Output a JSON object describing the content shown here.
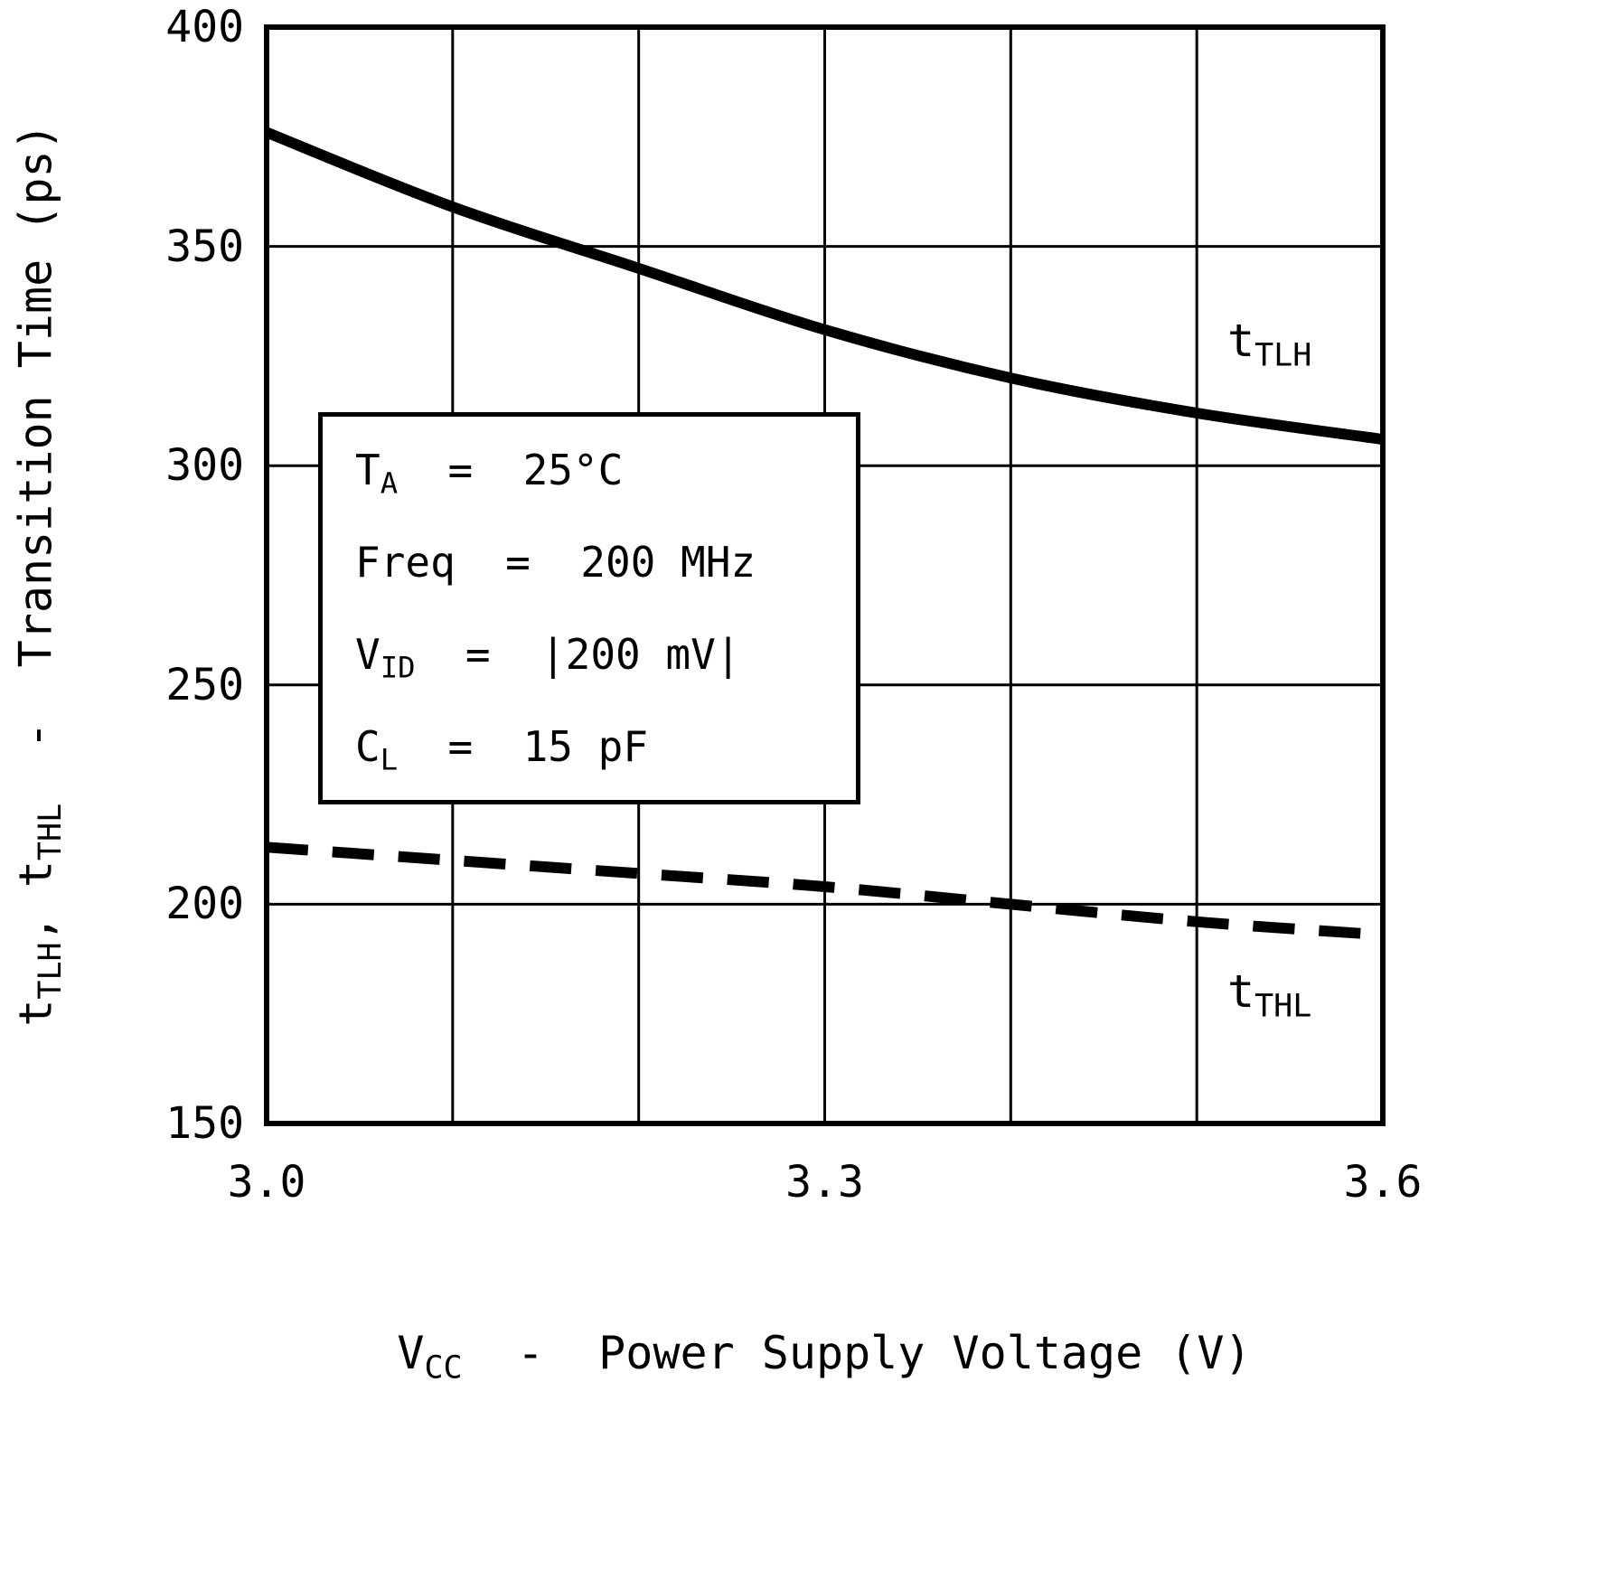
{
  "chart_data": {
    "type": "line",
    "title": "",
    "xlabel": {
      "prefix": "V",
      "sub": "CC",
      "suffix": "  -  Power Supply Voltage (V)"
    },
    "ylabel": {
      "p1": "t",
      "s1": "TLH",
      "p2": ", t",
      "s2": "THL",
      "p3": "  -  Transition Time (ps)"
    },
    "xlim": [
      3.0,
      3.6
    ],
    "ylim": [
      150,
      400
    ],
    "x_grid_step": 0.1,
    "y_grid_step": 50,
    "grid": true,
    "legend_position": "inline-curve-labels",
    "x_tick_values": [
      3.0,
      3.3,
      3.6
    ],
    "x_tick_labels": [
      "3.0",
      "3.3",
      "3.6"
    ],
    "y_tick_values": [
      150,
      200,
      250,
      300,
      350,
      400
    ],
    "y_tick_labels": [
      "150",
      "200",
      "250",
      "300",
      "350",
      "400"
    ],
    "x": [
      3.0,
      3.1,
      3.2,
      3.3,
      3.4,
      3.5,
      3.6
    ],
    "series": [
      {
        "name": "tTLH",
        "label_prefix": "t",
        "label_sub": "TLH",
        "line_style": "solid",
        "values": [
          376,
          359,
          345,
          331,
          320,
          312,
          306
        ]
      },
      {
        "name": "tTHL",
        "label_prefix": "t",
        "label_sub": "THL",
        "line_style": "dashed",
        "values": [
          213,
          210,
          207,
          204,
          200,
          196,
          193
        ]
      }
    ],
    "conditions": [
      {
        "prefix": "T",
        "sub": "A",
        "rest": "  =  25°C"
      },
      {
        "prefix": "Freq",
        "sub": "",
        "rest": "  =  200 MHz"
      },
      {
        "prefix": "V",
        "sub": "ID",
        "rest": "  =  |200 mV|"
      },
      {
        "prefix": "C",
        "sub": "L",
        "rest": "  =  15 pF"
      }
    ],
    "line_color": "#000000",
    "background_color": "#ffffff"
  }
}
